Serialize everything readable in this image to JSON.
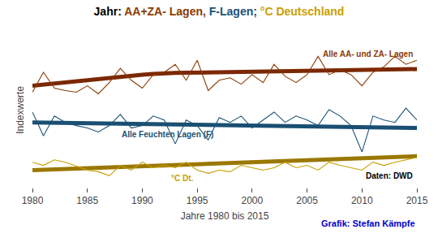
{
  "chart_data": {
    "type": "line",
    "title": [
      {
        "text": "Jahr: ",
        "color": "#000000"
      },
      {
        "text": "AA+ZA- Lagen, ",
        "color": "#8B3A00"
      },
      {
        "text": "F-Lagen; ",
        "color": "#1a5276"
      },
      {
        "text": "°C Deutschland",
        "color": "#c8a000"
      }
    ],
    "xlabel": "Jahre 1980 bis 2015",
    "ylabel": "Indexwerte",
    "x": [
      1980,
      1981,
      1982,
      1983,
      1984,
      1985,
      1986,
      1987,
      1988,
      1989,
      1990,
      1991,
      1992,
      1993,
      1994,
      1995,
      1996,
      1997,
      1998,
      1999,
      2000,
      2001,
      2002,
      2003,
      2004,
      2005,
      2006,
      2007,
      2008,
      2009,
      2010,
      2011,
      2012,
      2013,
      2014,
      2015
    ],
    "series": [
      {
        "color": "#8B3A00",
        "line_style": "solid",
        "values": [
          5.0,
          7.5,
          5.5,
          5.2,
          5.0,
          5.8,
          4.8,
          6.2,
          8.0,
          6.5,
          5.5,
          7.2,
          7.5,
          8.5,
          6.5,
          9.0,
          5.2,
          6.5,
          6.8,
          6.0,
          7.2,
          6.2,
          8.5,
          7.0,
          6.2,
          7.2,
          9.5,
          7.2,
          7.8,
          7.2,
          5.8,
          7.5,
          8.2,
          9.5,
          8.5,
          9.0
        ]
      },
      {
        "color": "#1a5276",
        "line_style": "solid",
        "values": [
          2.5,
          -0.5,
          2.0,
          1.2,
          0.8,
          0.5,
          0.0,
          0.8,
          2.2,
          0.5,
          0.8,
          2.0,
          1.5,
          -1.5,
          1.5,
          0.8,
          -1.0,
          1.8,
          1.2,
          2.0,
          0.5,
          1.5,
          2.5,
          1.2,
          2.0,
          1.5,
          0.8,
          2.8,
          2.0,
          0.8,
          -2.5,
          2.0,
          1.5,
          1.2,
          3.0,
          1.5
        ]
      },
      {
        "color": "#c8a000",
        "line_style": "solid",
        "values": [
          -3.8,
          -4.2,
          -3.5,
          -3.8,
          -4.3,
          -4.8,
          -5.0,
          -5.5,
          -4.2,
          -4.8,
          -3.8,
          -4.5,
          -4.2,
          -4.5,
          -3.8,
          -4.8,
          -5.2,
          -4.8,
          -5.0,
          -4.2,
          -4.5,
          -4.8,
          -4.5,
          -3.8,
          -4.5,
          -4.2,
          -4.8,
          -3.8,
          -4.2,
          -4.5,
          -4.8,
          -3.8,
          -4.2,
          -3.8,
          -3.5,
          -3.2
        ]
      },
      {
        "color": "#7B2800",
        "line_style": "thick",
        "values": [
          5.8,
          5.95,
          6.1,
          6.25,
          6.4,
          6.55,
          6.7,
          6.85,
          7.0,
          7.1,
          7.2,
          7.3,
          7.4,
          7.42,
          7.44,
          7.46,
          7.48,
          7.5,
          7.52,
          7.54,
          7.56,
          7.58,
          7.6,
          7.62,
          7.64,
          7.66,
          7.68,
          7.7,
          7.72,
          7.74,
          7.76,
          7.78,
          7.8,
          7.82,
          7.84,
          7.9
        ]
      },
      {
        "color": "#1a4f72",
        "line_style": "thick",
        "values": [
          1.2,
          1.18,
          1.16,
          1.14,
          1.12,
          1.1,
          1.08,
          1.06,
          1.04,
          1.02,
          1.0,
          0.98,
          0.96,
          0.94,
          0.92,
          0.9,
          0.88,
          0.86,
          0.84,
          0.82,
          0.8,
          0.78,
          0.76,
          0.74,
          0.72,
          0.7,
          0.68,
          0.66,
          0.64,
          0.62,
          0.6,
          0.58,
          0.56,
          0.54,
          0.52,
          0.5
        ]
      },
      {
        "color": "#9a7800",
        "line_style": "thick",
        "values": [
          -4.8,
          -4.75,
          -4.7,
          -4.65,
          -4.6,
          -4.55,
          -4.5,
          -4.45,
          -4.4,
          -4.35,
          -4.3,
          -4.25,
          -4.2,
          -4.15,
          -4.1,
          -4.05,
          -4.0,
          -3.95,
          -3.9,
          -3.85,
          -3.8,
          -3.75,
          -3.7,
          -3.65,
          -3.6,
          -3.55,
          -3.5,
          -3.45,
          -3.4,
          -3.35,
          -3.3,
          -3.25,
          -3.2,
          -3.15,
          -3.1,
          -3.05
        ]
      }
    ],
    "xlim": [
      1980,
      2015
    ],
    "xticks": [
      1980,
      1985,
      1990,
      1995,
      2000,
      2005,
      2010,
      2015
    ],
    "ylim": [
      -7.0,
      12.5
    ],
    "yticks": [],
    "tick_labels": "x",
    "grid": false,
    "annotations": [
      {
        "text": "Alle AA- und ZA- Lagen",
        "x": 2014.8,
        "y": 9.8,
        "color": "#8B3A00"
      },
      {
        "text": "Alle Feuchten Lagen (F)",
        "x": 1988.0,
        "y": -0.3,
        "color": "#1a5276"
      },
      {
        "text": "°C Dt.",
        "x": 1992.5,
        "y": -5.8,
        "color": "#c8a000"
      },
      {
        "text": "Daten: DWD",
        "x": 2014.8,
        "y": -5.5,
        "color": "#000000"
      },
      {
        "text": "Grafik: Stefan Kämpfe",
        "color": "#0000cc"
      }
    ]
  }
}
